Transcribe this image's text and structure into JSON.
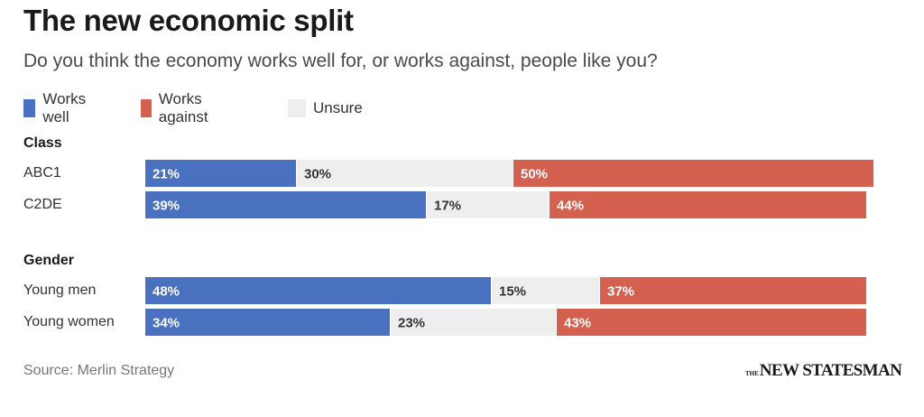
{
  "header": {
    "title": "The new economic split",
    "subtitle": "Do you think the economy works well for, or works against, people like you?"
  },
  "colors": {
    "works_well": "#4a70c0",
    "works_against": "#d46050",
    "unsure": "#eeeeee"
  },
  "chart_data": {
    "type": "bar",
    "orientation": "horizontal",
    "stacked": true,
    "series": [
      {
        "name": "Works well",
        "color": "#4a70c0"
      },
      {
        "name": "Works against",
        "color": "#d46050"
      },
      {
        "name": "Unsure",
        "color": "#eeeeee"
      }
    ],
    "stack_order": [
      "Works well",
      "Unsure",
      "Works against"
    ],
    "groups": [
      {
        "title": "Class",
        "rows": [
          {
            "label": "ABC1",
            "works_well": 21,
            "unsure": 30,
            "works_against": 50
          },
          {
            "label": "C2DE",
            "works_well": 39,
            "unsure": 17,
            "works_against": 44
          }
        ]
      },
      {
        "title": "Gender",
        "rows": [
          {
            "label": "Young men",
            "works_well": 48,
            "unsure": 15,
            "works_against": 37
          },
          {
            "label": "Young women",
            "works_well": 34,
            "unsure": 23,
            "works_against": 43
          }
        ]
      }
    ],
    "value_suffix": "%",
    "xlim": [
      0,
      100
    ],
    "legend": "top-left",
    "grid": false
  },
  "footer": {
    "source": "Source: Merlin Strategy",
    "logo_prefix": "THE",
    "logo_text": "NEW STATESMAN"
  }
}
